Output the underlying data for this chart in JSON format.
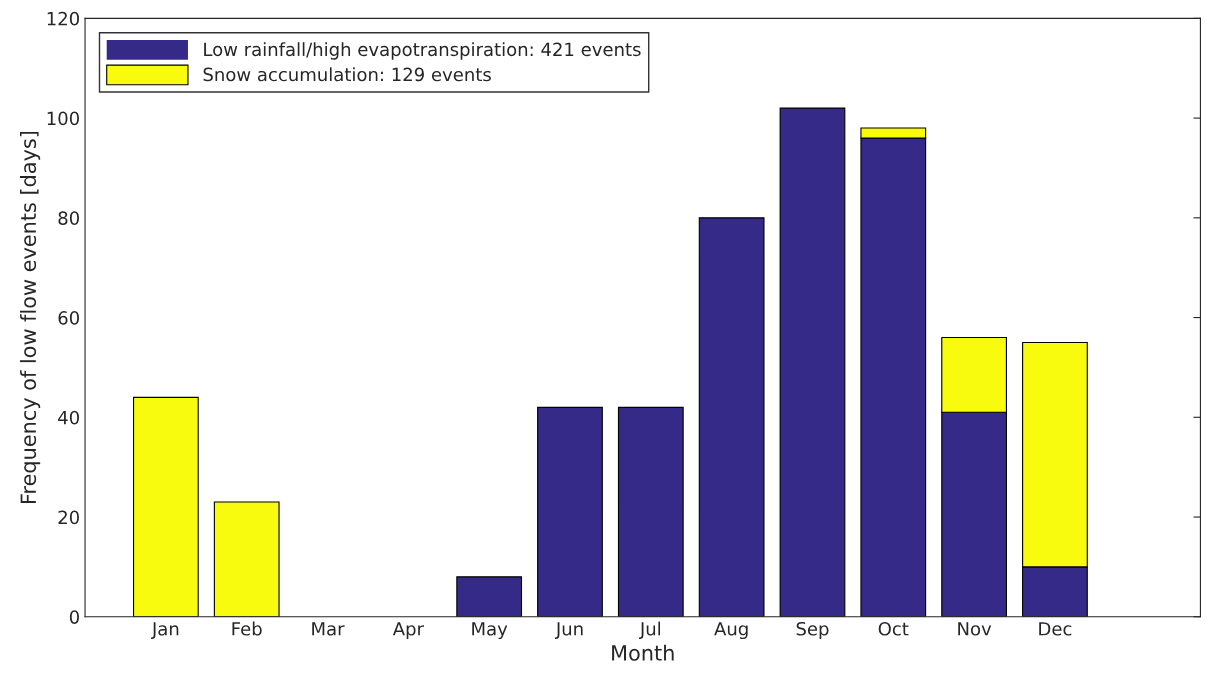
{
  "chart_data": {
    "type": "bar",
    "stacked": true,
    "xlabel": "Month",
    "ylabel": "Frequency of low flow events [days]",
    "categories": [
      "Jan",
      "Feb",
      "Mar",
      "Apr",
      "May",
      "Jun",
      "Jul",
      "Aug",
      "Sep",
      "Oct",
      "Nov",
      "Dec"
    ],
    "series": [
      {
        "name": "Low rainfall/high evapotranspiration: 421 events",
        "color": "#352a87",
        "values": [
          0,
          0,
          0,
          0,
          8,
          42,
          42,
          80,
          102,
          96,
          41,
          10
        ]
      },
      {
        "name": "Snow accumulation: 129 events",
        "color": "#f9fb0e",
        "values": [
          44,
          23,
          0,
          0,
          0,
          0,
          0,
          0,
          0,
          2,
          15,
          45
        ]
      }
    ],
    "ylim": [
      0,
      120
    ],
    "yticks": [
      0,
      20,
      40,
      60,
      80,
      100,
      120
    ],
    "grid": false,
    "legend": "top left"
  }
}
